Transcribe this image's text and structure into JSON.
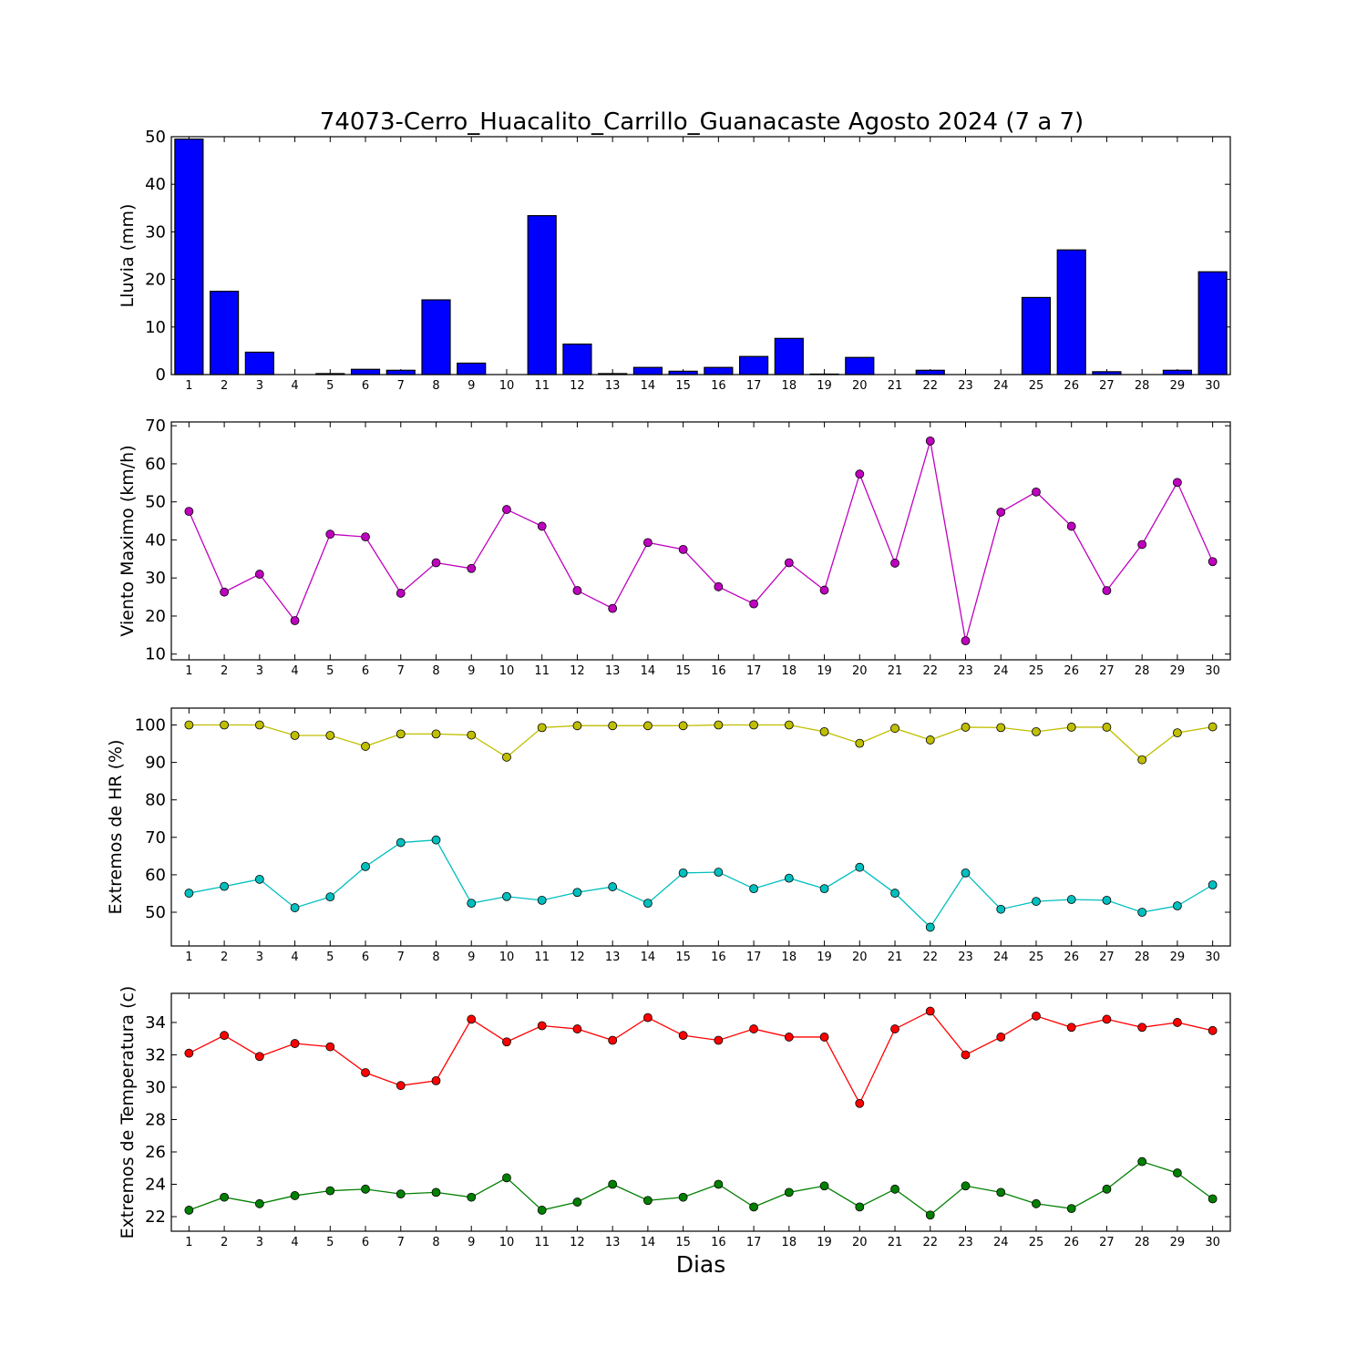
{
  "chart_data": {
    "title": "74073-Cerro_Huacalito_Carrillo_Guanacaste Agosto 2024  (7 a 7)",
    "xlabel": "Dias",
    "x": [
      1,
      2,
      3,
      4,
      5,
      6,
      7,
      8,
      9,
      10,
      11,
      12,
      13,
      14,
      15,
      16,
      17,
      18,
      19,
      20,
      21,
      22,
      23,
      24,
      25,
      26,
      27,
      28,
      29,
      30
    ],
    "panels": [
      {
        "type": "bar",
        "ylabel": "Lluvia (mm)",
        "ylim": [
          0,
          50
        ],
        "yticks": [
          0,
          10,
          20,
          30,
          40,
          50
        ],
        "grid": false,
        "color": "#0000ff",
        "series": [
          {
            "values": [
              49.5,
              17.5,
              4.7,
              0,
              0.2,
              1.1,
              0.9,
              15.7,
              2.4,
              0,
              33.4,
              6.4,
              0.2,
              1.5,
              0.7,
              1.5,
              3.8,
              7.6,
              0.1,
              3.6,
              0,
              0.9,
              0,
              0,
              16.2,
              26.2,
              0.6,
              0,
              0.9,
              21.6
            ]
          }
        ]
      },
      {
        "type": "line",
        "ylabel": "Viento Maximo (km/h)",
        "ylim": [
          8.5,
          71
        ],
        "yticks": [
          10,
          20,
          30,
          40,
          50,
          60,
          70
        ],
        "grid": false,
        "series": [
          {
            "color": "#bf00bf",
            "values": [
              47.5,
              26.3,
              31,
              18.8,
              41.5,
              40.8,
              26,
              34,
              32.5,
              48,
              43.6,
              26.7,
              22,
              39.3,
              37.5,
              27.7,
              23.2,
              34,
              26.8,
              57.3,
              33.9,
              66,
              13.5,
              47.3,
              52.6,
              43.6,
              26.7,
              38.8,
              55.1,
              34.3
            ]
          }
        ]
      },
      {
        "type": "line",
        "ylabel": "Extremos de HR (%)",
        "ylim": [
          41,
          104.5
        ],
        "yticks": [
          50,
          60,
          70,
          80,
          90,
          100
        ],
        "grid": false,
        "series": [
          {
            "color": "#bfbf00",
            "values": [
              100,
              100,
              100,
              97.2,
              97.2,
              94.3,
              97.6,
              97.6,
              97.3,
              91.4,
              99.3,
              99.8,
              99.8,
              99.8,
              99.8,
              100,
              100,
              100,
              98.2,
              95.1,
              99.1,
              96,
              99.4,
              99.3,
              98.2,
              99.4,
              99.4,
              90.7,
              97.9,
              99.5
            ]
          },
          {
            "color": "#00bfbf",
            "values": [
              55.1,
              56.9,
              58.8,
              51.2,
              54.1,
              62.2,
              68.6,
              69.3,
              52.4,
              54.2,
              53.2,
              55.3,
              56.8,
              52.4,
              60.5,
              60.7,
              56.3,
              59.1,
              56.3,
              62,
              55.1,
              46,
              60.5,
              50.8,
              52.9,
              53.4,
              53.2,
              50,
              51.7,
              57.3
            ]
          }
        ]
      },
      {
        "type": "line",
        "ylabel": "Extremos de Temperatura (c)",
        "ylim": [
          21.1,
          35.8
        ],
        "yticks": [
          22,
          24,
          26,
          28,
          30,
          32,
          34
        ],
        "grid": false,
        "series": [
          {
            "color": "#ff0000",
            "values": [
              32.1,
              33.2,
              31.9,
              32.7,
              32.5,
              30.9,
              30.1,
              30.4,
              34.2,
              32.8,
              33.8,
              33.6,
              32.9,
              34.3,
              33.2,
              32.9,
              33.6,
              33.1,
              33.1,
              29,
              33.6,
              34.7,
              32,
              33.1,
              34.4,
              33.7,
              34.2,
              33.7,
              34,
              33.5
            ]
          },
          {
            "color": "#008000",
            "values": [
              22.4,
              23.2,
              22.8,
              23.3,
              23.6,
              23.7,
              23.4,
              23.5,
              23.2,
              24.4,
              22.4,
              22.9,
              24,
              23,
              23.2,
              24,
              22.6,
              23.5,
              23.9,
              22.6,
              23.7,
              22.1,
              23.9,
              23.5,
              22.8,
              22.5,
              23.7,
              25.4,
              24.7,
              23.1
            ]
          }
        ]
      }
    ]
  }
}
